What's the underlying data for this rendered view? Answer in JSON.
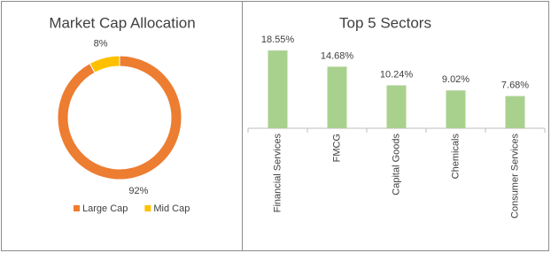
{
  "chart_data": [
    {
      "type": "pie",
      "title": "Market Cap Allocation",
      "hole": true,
      "categories": [
        "Large Cap",
        "Mid Cap"
      ],
      "values": [
        92,
        8
      ],
      "value_labels": [
        "92%",
        "8%"
      ],
      "colors": [
        "#ED7D31",
        "#FFC000"
      ],
      "legend": "bottom"
    },
    {
      "type": "bar",
      "title": "Top 5 Sectors",
      "categories": [
        "Financial Services",
        "FMCG",
        "Capital Goods",
        "Chemicals",
        "Consumer Services"
      ],
      "values": [
        18.55,
        14.68,
        10.24,
        9.02,
        7.68
      ],
      "value_labels": [
        "18.55%",
        "14.68%",
        "10.24%",
        "9.02%",
        "7.68%"
      ],
      "color": "#A9D18E"
    }
  ]
}
